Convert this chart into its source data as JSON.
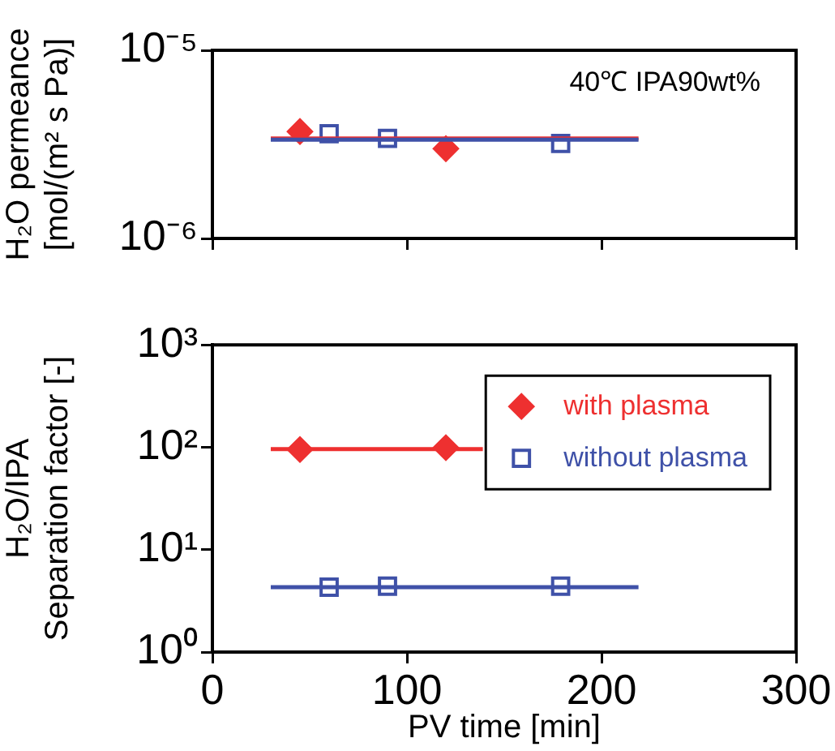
{
  "chart_data": [
    {
      "type": "scatter",
      "ylabel": "H₂O permeance\n[mol/(m² s Pa)]",
      "annotations": [
        "40℃ IPA90wt%"
      ],
      "log": "y",
      "grid": false,
      "legend": false,
      "tick_labels": "y",
      "xlim": [
        0,
        300
      ],
      "xticks": [
        {
          "value": 0,
          "label": null
        },
        {
          "value": 100,
          "label": null
        },
        {
          "value": 200,
          "label": null
        },
        {
          "value": 300,
          "label": null
        }
      ],
      "ylim": [
        1e-06,
        1e-05
      ],
      "yticks": [
        {
          "value": 1e-06,
          "label": "10⁻⁶"
        },
        {
          "value": 1e-05,
          "label": "10⁻⁵"
        }
      ],
      "series": [
        {
          "type": "line",
          "color": "#3f51a8",
          "marker": "none",
          "x": [
            30,
            219
          ],
          "values": [
            3.35e-06,
            3.35e-06
          ]
        },
        {
          "type": "line",
          "color": "#ee3030",
          "marker": "none",
          "x": [
            30,
            219
          ],
          "values": [
            3.4e-06,
            3.4e-06
          ]
        },
        {
          "color": "#ee3030",
          "marker": "diamond",
          "x": [
            45,
            120
          ],
          "values": [
            3.7e-06,
            3e-06
          ]
        },
        {
          "color": "#3f51a8",
          "marker": "square",
          "x": [
            60,
            90,
            179
          ],
          "values": [
            3.6e-06,
            3.4e-06,
            3.2e-06
          ]
        }
      ]
    },
    {
      "type": "scatter",
      "xlabel": "PV time [min]",
      "ylabel": "H₂O/IPA\nSeparation factor [-]",
      "log": "y",
      "grid": false,
      "legend": "top right",
      "xlim": [
        0,
        300
      ],
      "xticks": [
        0,
        100,
        200,
        300
      ],
      "ylim": [
        1,
        1000
      ],
      "yticks": [
        {
          "value": 1,
          "label": "10⁰"
        },
        {
          "value": 10,
          "label": "10¹"
        },
        {
          "value": 100,
          "label": "10²"
        },
        {
          "value": 1000,
          "label": "10³"
        }
      ],
      "series": [
        {
          "type": "line",
          "color": "#ee3030",
          "marker": "none",
          "x": [
            30,
            139
          ],
          "values": [
            96,
            96
          ]
        },
        {
          "type": "line",
          "color": "#3f51a8",
          "marker": "none",
          "x": [
            30,
            219
          ],
          "values": [
            4.3,
            4.3
          ]
        },
        {
          "name": "with plasma",
          "color": "#ee3030",
          "marker": "diamond",
          "x": [
            45,
            120
          ],
          "values": [
            95,
            99
          ]
        },
        {
          "name": "without plasma",
          "color": "#3f51a8",
          "marker": "square",
          "x": [
            60,
            90,
            179
          ],
          "values": [
            4.3,
            4.4,
            4.4
          ]
        }
      ]
    }
  ]
}
